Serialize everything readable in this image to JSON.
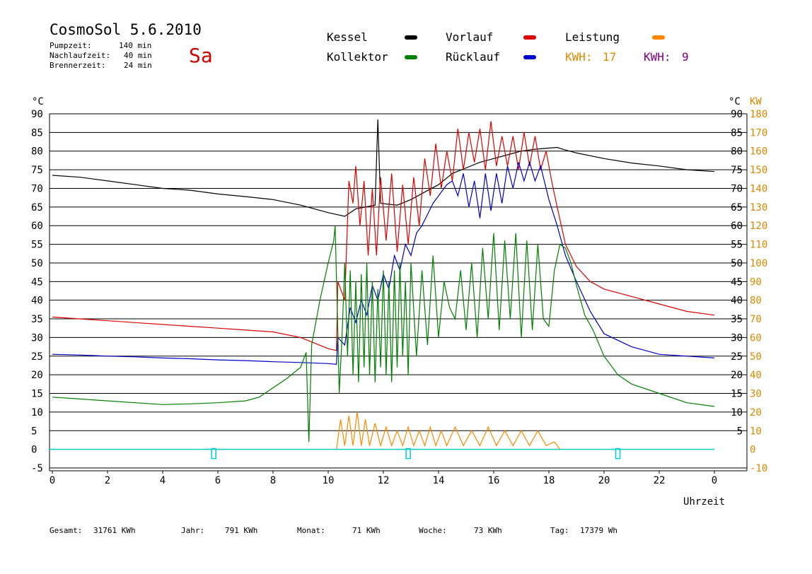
{
  "header": {
    "title": "CosmoSol 5.6.2010",
    "day": "Sa",
    "info": [
      {
        "label": "Pumpzeit:",
        "value": "140 min"
      },
      {
        "label": "Nachlaufzeit:",
        "value": "40 min"
      },
      {
        "label": "Brennerzeit:",
        "value": "24 min"
      }
    ]
  },
  "legend": {
    "kessel": {
      "label": "Kessel",
      "color": "#000000"
    },
    "vorlauf": {
      "label": "Vorlauf",
      "color": "#dd0000"
    },
    "leistung": {
      "label": "Leistung",
      "color": "#ff8800"
    },
    "kollektor": {
      "label": "Kollektor",
      "color": "#008000"
    },
    "ruecklauf": {
      "label": "Rücklauf",
      "color": "#0000cc"
    },
    "kwh1": {
      "label": "KWH:",
      "value": "17",
      "color": "#dd8800"
    },
    "kwh2": {
      "label": "KWH:",
      "value": "9",
      "color": "#800080"
    }
  },
  "footer": [
    {
      "label": "Gesamt:",
      "value": "31761 KWh"
    },
    {
      "label": "Jahr:",
      "value": "791 KWh"
    },
    {
      "label": "Monat:",
      "value": "71 KWh"
    },
    {
      "label": "Woche:",
      "value": "73 KWh"
    },
    {
      "label": "Tag:",
      "value": "17379 Wh"
    }
  ],
  "chart_data": {
    "type": "line",
    "xlabel": "Uhrzeit",
    "ylabel_left": "°C",
    "ylabel_right_temp": "°C",
    "ylabel_right_power": "KW",
    "xlim": [
      0,
      24
    ],
    "ylim": [
      -5,
      90
    ],
    "grid": true,
    "x_ticks": [
      "0",
      "2",
      "4",
      "6",
      "8",
      "10",
      "12",
      "14",
      "16",
      "18",
      "20",
      "22",
      "0"
    ],
    "y_ticks": [
      -5,
      0,
      5,
      10,
      15,
      20,
      25,
      30,
      35,
      40,
      45,
      50,
      55,
      60,
      65,
      70,
      75,
      80,
      85,
      90
    ],
    "right_temp_ticks": [
      5,
      10,
      15,
      20,
      25,
      30,
      35,
      40,
      45,
      50,
      55,
      60,
      65,
      70,
      75,
      80,
      85,
      90
    ],
    "right_power_ticks": [
      -10,
      0,
      10,
      20,
      30,
      40,
      50,
      60,
      70,
      80,
      90,
      100,
      110,
      120,
      130,
      140,
      150,
      160,
      170,
      180
    ],
    "series": [
      {
        "name": "Kessel",
        "color": "#000000",
        "points": [
          [
            0,
            73.5
          ],
          [
            1,
            73
          ],
          [
            2,
            72
          ],
          [
            3,
            71
          ],
          [
            4,
            70
          ],
          [
            5,
            69.5
          ],
          [
            6,
            68.5
          ],
          [
            7,
            67.8
          ],
          [
            8,
            67
          ],
          [
            9,
            65.5
          ],
          [
            10,
            63.5
          ],
          [
            10.6,
            62.5
          ],
          [
            11,
            64.5
          ],
          [
            11.7,
            65.5
          ],
          [
            11.8,
            88.5
          ],
          [
            11.9,
            66
          ],
          [
            12.5,
            65.5
          ],
          [
            13,
            67
          ],
          [
            13.5,
            69
          ],
          [
            14,
            71
          ],
          [
            14.5,
            74
          ],
          [
            15,
            75.5
          ],
          [
            15.5,
            77
          ],
          [
            16,
            78
          ],
          [
            16.5,
            79
          ],
          [
            17,
            80
          ],
          [
            17.5,
            80.5
          ],
          [
            18,
            80.8
          ],
          [
            18.3,
            81
          ],
          [
            18.5,
            80.5
          ],
          [
            19,
            79.5
          ],
          [
            20,
            78
          ],
          [
            21,
            76.8
          ],
          [
            22,
            76
          ],
          [
            23,
            75
          ],
          [
            24,
            74.5
          ]
        ]
      },
      {
        "name": "Vorlauf",
        "color": "#dd0000",
        "points": [
          [
            0,
            35.5
          ],
          [
            1,
            35
          ],
          [
            2,
            34.5
          ],
          [
            3,
            34
          ],
          [
            4,
            33.5
          ],
          [
            5,
            33
          ],
          [
            6,
            32.5
          ],
          [
            7,
            32
          ],
          [
            8,
            31.5
          ],
          [
            9,
            30
          ],
          [
            9.5,
            28.5
          ],
          [
            10,
            27
          ],
          [
            10.3,
            26.5
          ],
          [
            10.35,
            45
          ],
          [
            10.6,
            40
          ],
          [
            10.75,
            72
          ],
          [
            10.9,
            66
          ],
          [
            11,
            76
          ],
          [
            11.15,
            60
          ],
          [
            11.3,
            72
          ],
          [
            11.45,
            52
          ],
          [
            11.6,
            70
          ],
          [
            11.75,
            52
          ],
          [
            11.9,
            73
          ],
          [
            12.1,
            56
          ],
          [
            12.3,
            74
          ],
          [
            12.5,
            53
          ],
          [
            12.7,
            71
          ],
          [
            12.9,
            55
          ],
          [
            13.1,
            73
          ],
          [
            13.3,
            60
          ],
          [
            13.5,
            78
          ],
          [
            13.7,
            68
          ],
          [
            13.9,
            82
          ],
          [
            14.1,
            70
          ],
          [
            14.3,
            80
          ],
          [
            14.5,
            72
          ],
          [
            14.7,
            86
          ],
          [
            14.9,
            75
          ],
          [
            15.1,
            85
          ],
          [
            15.3,
            77
          ],
          [
            15.5,
            86
          ],
          [
            15.7,
            75
          ],
          [
            15.9,
            88
          ],
          [
            16.1,
            76
          ],
          [
            16.3,
            84
          ],
          [
            16.5,
            76
          ],
          [
            16.7,
            84
          ],
          [
            16.9,
            75
          ],
          [
            17.1,
            85
          ],
          [
            17.3,
            76
          ],
          [
            17.5,
            84
          ],
          [
            17.7,
            75
          ],
          [
            17.9,
            80
          ],
          [
            18.1,
            72
          ],
          [
            18.3,
            65
          ],
          [
            18.6,
            55
          ],
          [
            19,
            49
          ],
          [
            19.5,
            45
          ],
          [
            20,
            43
          ],
          [
            21,
            41
          ],
          [
            22,
            39
          ],
          [
            23,
            37
          ],
          [
            24,
            36
          ]
        ]
      },
      {
        "name": "Rücklauf",
        "color": "#0000cc",
        "points": [
          [
            0,
            25.5
          ],
          [
            1,
            25.3
          ],
          [
            2,
            25
          ],
          [
            3,
            24.8
          ],
          [
            4,
            24.5
          ],
          [
            5,
            24.3
          ],
          [
            6,
            24
          ],
          [
            7,
            23.8
          ],
          [
            8,
            23.5
          ],
          [
            9,
            23.3
          ],
          [
            10,
            23
          ],
          [
            10.3,
            22.8
          ],
          [
            10.35,
            30
          ],
          [
            10.6,
            28
          ],
          [
            10.8,
            38
          ],
          [
            11,
            34
          ],
          [
            11.2,
            40
          ],
          [
            11.4,
            36
          ],
          [
            11.6,
            44
          ],
          [
            11.8,
            40
          ],
          [
            12,
            47
          ],
          [
            12.2,
            43
          ],
          [
            12.4,
            52
          ],
          [
            12.6,
            48
          ],
          [
            12.8,
            55
          ],
          [
            13,
            52
          ],
          [
            13.2,
            58
          ],
          [
            13.4,
            60
          ],
          [
            13.6,
            63
          ],
          [
            13.8,
            66
          ],
          [
            14,
            68
          ],
          [
            14.3,
            71
          ],
          [
            14.5,
            72
          ],
          [
            14.7,
            68
          ],
          [
            14.9,
            74
          ],
          [
            15.1,
            65
          ],
          [
            15.3,
            72
          ],
          [
            15.5,
            62
          ],
          [
            15.7,
            74
          ],
          [
            15.9,
            64
          ],
          [
            16.1,
            74
          ],
          [
            16.3,
            66
          ],
          [
            16.5,
            76
          ],
          [
            16.7,
            70
          ],
          [
            16.9,
            77
          ],
          [
            17.1,
            72
          ],
          [
            17.3,
            77
          ],
          [
            17.5,
            72
          ],
          [
            17.7,
            76
          ],
          [
            17.9,
            70
          ],
          [
            18,
            67
          ],
          [
            18.3,
            60
          ],
          [
            18.6,
            52
          ],
          [
            19,
            45
          ],
          [
            19.5,
            37
          ],
          [
            20,
            31
          ],
          [
            21,
            27.5
          ],
          [
            22,
            25.5
          ],
          [
            23,
            25
          ],
          [
            24,
            24.5
          ]
        ]
      },
      {
        "name": "Kollektor",
        "color": "#008000",
        "points": [
          [
            0,
            14
          ],
          [
            1,
            13.5
          ],
          [
            2,
            13
          ],
          [
            3,
            12.5
          ],
          [
            4,
            12
          ],
          [
            5,
            12.2
          ],
          [
            6,
            12.5
          ],
          [
            7,
            13
          ],
          [
            7.5,
            14
          ],
          [
            8,
            16.5
          ],
          [
            8.5,
            19
          ],
          [
            9,
            22
          ],
          [
            9.2,
            26
          ],
          [
            9.3,
            2
          ],
          [
            9.4,
            28
          ],
          [
            9.7,
            40
          ],
          [
            10,
            50
          ],
          [
            10.2,
            56
          ],
          [
            10.25,
            60
          ],
          [
            10.35,
            32
          ],
          [
            10.4,
            15
          ],
          [
            10.5,
            30
          ],
          [
            10.6,
            50
          ],
          [
            10.7,
            25
          ],
          [
            10.8,
            48
          ],
          [
            10.9,
            20
          ],
          [
            11,
            45
          ],
          [
            11.1,
            18
          ],
          [
            11.2,
            47
          ],
          [
            11.3,
            22
          ],
          [
            11.4,
            50
          ],
          [
            11.5,
            20
          ],
          [
            11.6,
            45
          ],
          [
            11.7,
            18
          ],
          [
            11.8,
            43
          ],
          [
            11.9,
            22
          ],
          [
            12,
            48
          ],
          [
            12.1,
            20
          ],
          [
            12.2,
            45
          ],
          [
            12.3,
            18
          ],
          [
            12.4,
            48
          ],
          [
            12.5,
            22
          ],
          [
            12.6,
            50
          ],
          [
            12.7,
            25
          ],
          [
            12.8,
            45
          ],
          [
            12.9,
            20
          ],
          [
            13,
            50
          ],
          [
            13.2,
            25
          ],
          [
            13.4,
            48
          ],
          [
            13.6,
            28
          ],
          [
            13.8,
            52
          ],
          [
            14,
            30
          ],
          [
            14.2,
            45
          ],
          [
            14.4,
            38
          ],
          [
            14.6,
            35
          ],
          [
            14.8,
            48
          ],
          [
            15,
            32
          ],
          [
            15.2,
            50
          ],
          [
            15.4,
            30
          ],
          [
            15.6,
            54
          ],
          [
            15.8,
            35
          ],
          [
            16,
            58
          ],
          [
            16.2,
            32
          ],
          [
            16.4,
            56
          ],
          [
            16.6,
            35
          ],
          [
            16.8,
            58
          ],
          [
            17,
            30
          ],
          [
            17.2,
            56
          ],
          [
            17.4,
            32
          ],
          [
            17.6,
            55
          ],
          [
            17.8,
            35
          ],
          [
            18,
            33
          ],
          [
            18.2,
            48
          ],
          [
            18.4,
            55
          ],
          [
            18.6,
            54
          ],
          [
            18.8,
            50
          ],
          [
            19,
            44
          ],
          [
            19.3,
            36
          ],
          [
            19.6,
            32
          ],
          [
            20,
            25
          ],
          [
            20.5,
            20
          ],
          [
            21,
            17.5
          ],
          [
            22,
            15
          ],
          [
            23,
            12.5
          ],
          [
            24,
            11.5
          ]
        ]
      },
      {
        "name": "Leistung",
        "color": "#ff8800",
        "points": [
          [
            10.3,
            0
          ],
          [
            10.45,
            8
          ],
          [
            10.6,
            1
          ],
          [
            10.75,
            9
          ],
          [
            10.9,
            1
          ],
          [
            11.05,
            10
          ],
          [
            11.2,
            1
          ],
          [
            11.35,
            8
          ],
          [
            11.5,
            1
          ],
          [
            11.7,
            7
          ],
          [
            11.9,
            1
          ],
          [
            12.1,
            6
          ],
          [
            12.3,
            1
          ],
          [
            12.5,
            5
          ],
          [
            12.7,
            1
          ],
          [
            12.9,
            6
          ],
          [
            13.1,
            1
          ],
          [
            13.3,
            5
          ],
          [
            13.5,
            1
          ],
          [
            13.7,
            6
          ],
          [
            13.9,
            1
          ],
          [
            14.1,
            5
          ],
          [
            14.3,
            1
          ],
          [
            14.6,
            6
          ],
          [
            14.9,
            1
          ],
          [
            15.2,
            5
          ],
          [
            15.5,
            1
          ],
          [
            15.8,
            6
          ],
          [
            16.1,
            1
          ],
          [
            16.4,
            5
          ],
          [
            16.7,
            1
          ],
          [
            17,
            5
          ],
          [
            17.3,
            1
          ],
          [
            17.6,
            5
          ],
          [
            17.9,
            1
          ],
          [
            18.2,
            2
          ],
          [
            18.4,
            0
          ]
        ]
      }
    ],
    "pump_markers": [
      {
        "x": 5.85
      },
      {
        "x": 12.9
      },
      {
        "x": 20.5
      }
    ],
    "baseline": {
      "value": 0,
      "color": "#00cccc"
    }
  }
}
